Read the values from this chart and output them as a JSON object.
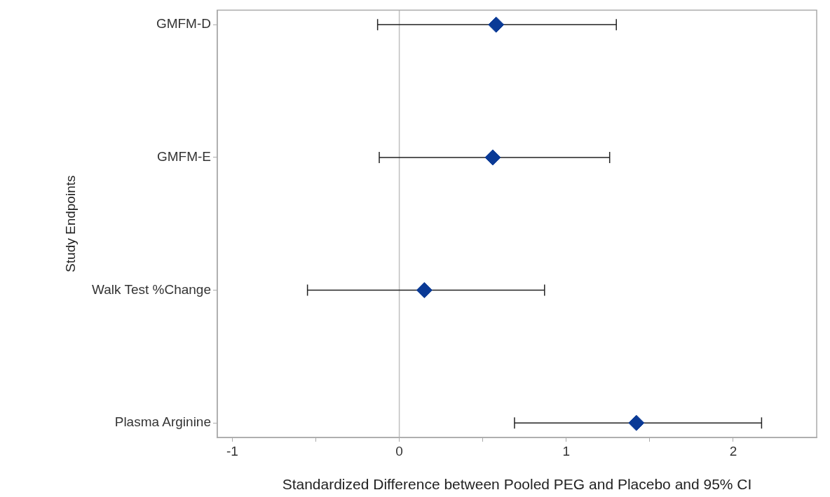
{
  "chart_data": {
    "type": "scatter",
    "orientation": "horizontal",
    "xlabel": "Standardized Difference between Pooled PEG and Placebo and 95% CI",
    "ylabel": "Study Endpoints",
    "categories": [
      "GMFM-D",
      "GMFM-E",
      "Walk Test %Change",
      "Plasma Arginine"
    ],
    "values": [
      0.58,
      0.56,
      0.15,
      1.42
    ],
    "errors": [
      [
        -0.13,
        1.3
      ],
      [
        -0.12,
        1.26
      ],
      [
        -0.55,
        0.87
      ],
      [
        0.69,
        2.17
      ]
    ],
    "color": "#0a3a96",
    "marker": "diamond",
    "xlim": [
      -1.09,
      2.5
    ],
    "xticks": [
      -1,
      {
        "value": -0.5,
        "label": null
      },
      0,
      {
        "value": 0.5,
        "label": null
      },
      1,
      {
        "value": 1.5,
        "label": null
      },
      2
    ],
    "ref_lines": [
      {
        "axis": "x",
        "value": 0,
        "color": "#c0c0c0"
      }
    ],
    "grid": false,
    "legend": false
  }
}
